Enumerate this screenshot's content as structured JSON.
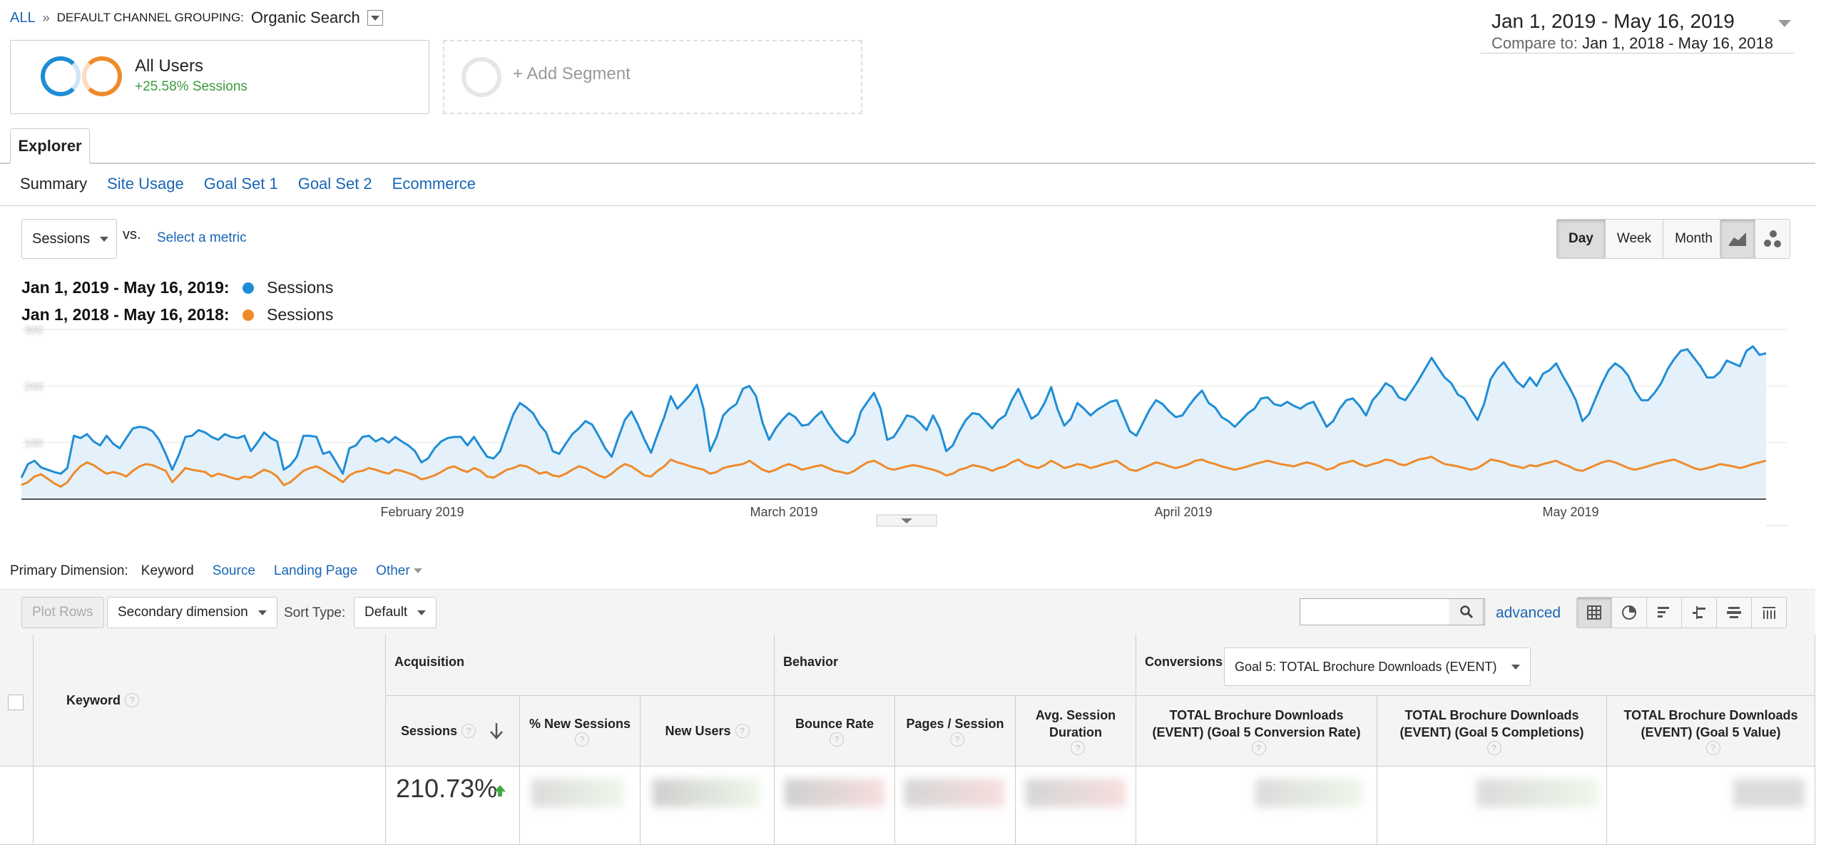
{
  "breadcrumb": {
    "root": "ALL",
    "separator": "»",
    "grouping_label": "DEFAULT CHANNEL GROUPING:",
    "grouping_value": "Organic Search"
  },
  "date_range": {
    "primary": "Jan 1, 2019 - May 16, 2019",
    "compare_label": "Compare to:",
    "compare_range": "Jan 1, 2018 - May 16, 2018"
  },
  "segments": {
    "all_users": {
      "name": "All Users",
      "delta": "+25.58% Sessions"
    },
    "add": "+ Add Segment"
  },
  "explorer": {
    "tab": "Explorer",
    "subtabs": [
      "Summary",
      "Site Usage",
      "Goal Set 1",
      "Goal Set 2",
      "Ecommerce"
    ]
  },
  "controls": {
    "metric": "Sessions",
    "vs": "vs.",
    "select_metric": "Select a metric",
    "granularity": [
      "Day",
      "Week",
      "Month"
    ]
  },
  "legend": [
    {
      "range": "Jan 1, 2019 - May 16, 2019:",
      "metric": "Sessions",
      "color": "#1f8dd6"
    },
    {
      "range": "Jan 1, 2018 - May 16, 2018:",
      "metric": "Sessions",
      "color": "#ef8a2b"
    }
  ],
  "chart_data": {
    "type": "line",
    "x_labels": [
      "February 2019",
      "March 2019",
      "April 2019",
      "May 2019"
    ],
    "y_ticks": [
      "300",
      "200",
      "100"
    ],
    "ylim": [
      0,
      300
    ],
    "grid": true,
    "series": [
      {
        "name": "Sessions",
        "color": "#1f8dd6",
        "values": [
          38,
          62,
          68,
          56,
          52,
          48,
          45,
          55,
          112,
          108,
          115,
          102,
          95,
          112,
          98,
          90,
          108,
          125,
          128,
          126,
          120,
          105,
          80,
          52,
          78,
          110,
          112,
          122,
          118,
          110,
          105,
          115,
          110,
          108,
          112,
          85,
          100,
          118,
          108,
          102,
          52,
          60,
          75,
          112,
          112,
          110,
          80,
          84,
          65,
          45,
          90,
          95,
          110,
          112,
          102,
          108,
          100,
          110,
          102,
          95,
          85,
          65,
          72,
          90,
          102,
          108,
          110,
          110,
          95,
          110,
          92,
          75,
          72,
          85,
          118,
          150,
          170,
          162,
          152,
          132,
          118,
          85,
          80,
          98,
          115,
          125,
          138,
          132,
          112,
          90,
          75,
          108,
          140,
          155,
          132,
          105,
          82,
          115,
          145,
          182,
          160,
          172,
          185,
          202,
          160,
          85,
          110,
          148,
          160,
          168,
          195,
          200,
          182,
          135,
          105,
          125,
          140,
          152,
          145,
          130,
          132,
          145,
          155,
          135,
          118,
          105,
          100,
          115,
          155,
          172,
          188,
          160,
          105,
          110,
          128,
          148,
          145,
          135,
          122,
          148,
          125,
          85,
          95,
          120,
          140,
          152,
          150,
          138,
          125,
          140,
          148,
          175,
          195,
          168,
          142,
          150,
          170,
          198,
          158,
          130,
          142,
          170,
          160,
          148,
          158,
          165,
          172,
          175,
          148,
          120,
          112,
          135,
          158,
          175,
          168,
          155,
          145,
          148,
          165,
          180,
          192,
          170,
          162,
          145,
          138,
          128,
          140,
          152,
          160,
          178,
          180,
          168,
          165,
          172,
          165,
          160,
          168,
          172,
          150,
          128,
          138,
          160,
          175,
          178,
          165,
          148,
          175,
          188,
          205,
          198,
          180,
          175,
          192,
          210,
          230,
          250,
          232,
          215,
          205,
          185,
          178,
          158,
          140,
          168,
          212,
          230,
          242,
          225,
          208,
          198,
          215,
          200,
          222,
          228,
          240,
          218,
          198,
          175,
          138,
          150,
          178,
          205,
          228,
          240,
          232,
          218,
          192,
          175,
          175,
          188,
          205,
          230,
          248,
          262,
          265,
          250,
          235,
          215,
          215,
          225,
          245,
          240,
          235,
          262,
          270,
          255,
          258
        ]
      },
      {
        "name": "Sessions",
        "color": "#ef8a2b",
        "values": [
          25,
          30,
          40,
          44,
          36,
          28,
          22,
          30,
          46,
          58,
          65,
          60,
          52,
          45,
          48,
          45,
          40,
          50,
          58,
          62,
          60,
          55,
          50,
          30,
          42,
          55,
          52,
          50,
          48,
          40,
          45,
          42,
          38,
          35,
          40,
          38,
          45,
          52,
          48,
          40,
          25,
          30,
          40,
          50,
          55,
          58,
          52,
          45,
          38,
          30,
          42,
          48,
          50,
          55,
          52,
          48,
          45,
          52,
          50,
          46,
          42,
          35,
          38,
          42,
          48,
          55,
          58,
          52,
          48,
          55,
          50,
          40,
          38,
          45,
          52,
          55,
          60,
          58,
          52,
          45,
          48,
          42,
          40,
          45,
          52,
          58,
          55,
          48,
          42,
          38,
          45,
          55,
          62,
          58,
          50,
          42,
          40,
          50,
          58,
          70,
          65,
          62,
          58,
          55,
          52,
          45,
          48,
          55,
          58,
          60,
          62,
          68,
          60,
          52,
          48,
          52,
          58,
          62,
          58,
          52,
          55,
          58,
          60,
          55,
          50,
          48,
          45,
          50,
          58,
          65,
          68,
          62,
          55,
          52,
          55,
          58,
          60,
          58,
          55,
          52,
          48,
          42,
          45,
          52,
          55,
          60,
          58,
          55,
          50,
          55,
          58,
          65,
          70,
          62,
          58,
          55,
          60,
          68,
          62,
          55,
          58,
          62,
          60,
          55,
          58,
          62,
          65,
          68,
          60,
          52,
          50,
          55,
          60,
          65,
          62,
          58,
          55,
          58,
          62,
          68,
          70,
          65,
          62,
          58,
          55,
          52,
          55,
          58,
          62,
          65,
          68,
          65,
          62,
          60,
          58,
          62,
          65,
          62,
          58,
          52,
          55,
          62,
          65,
          68,
          62,
          58,
          62,
          65,
          70,
          68,
          62,
          60,
          65,
          70,
          72,
          75,
          68,
          62,
          60,
          58,
          55,
          52,
          55,
          62,
          70,
          68,
          65,
          60,
          58,
          55,
          60,
          58,
          62,
          65,
          68,
          62,
          58,
          52,
          50,
          55,
          60,
          65,
          68,
          65,
          60,
          55,
          52,
          55,
          58,
          62,
          65,
          68,
          70,
          65,
          60,
          55,
          52,
          55,
          58,
          62,
          60,
          58,
          55,
          58,
          62,
          65,
          68
        ]
      }
    ]
  },
  "dimensions": {
    "label": "Primary Dimension:",
    "items": [
      "Keyword",
      "Source",
      "Landing Page",
      "Other"
    ]
  },
  "toolbar": {
    "plot_rows": "Plot Rows",
    "secondary": "Secondary dimension",
    "sort_type_label": "Sort Type:",
    "sort_type_value": "Default",
    "advanced": "advanced"
  },
  "table": {
    "keyword_header": "Keyword",
    "groups": {
      "acquisition": "Acquisition",
      "behavior": "Behavior",
      "conversions": "Conversions"
    },
    "goal_select": "Goal 5: TOTAL Brochure Downloads (EVENT)",
    "columns": [
      "Sessions",
      "% New Sessions",
      "New Users",
      "Bounce Rate",
      "Pages / Session",
      "Avg. Session Duration",
      "TOTAL Brochure Downloads (EVENT) (Goal 5 Conversion Rate)",
      "TOTAL Brochure Downloads (EVENT) (Goal 5 Completions)",
      "TOTAL Brochure Downloads (EVENT) (Goal 5 Value)"
    ],
    "sessions_change": "210.73%",
    "help_glyph": "?"
  }
}
